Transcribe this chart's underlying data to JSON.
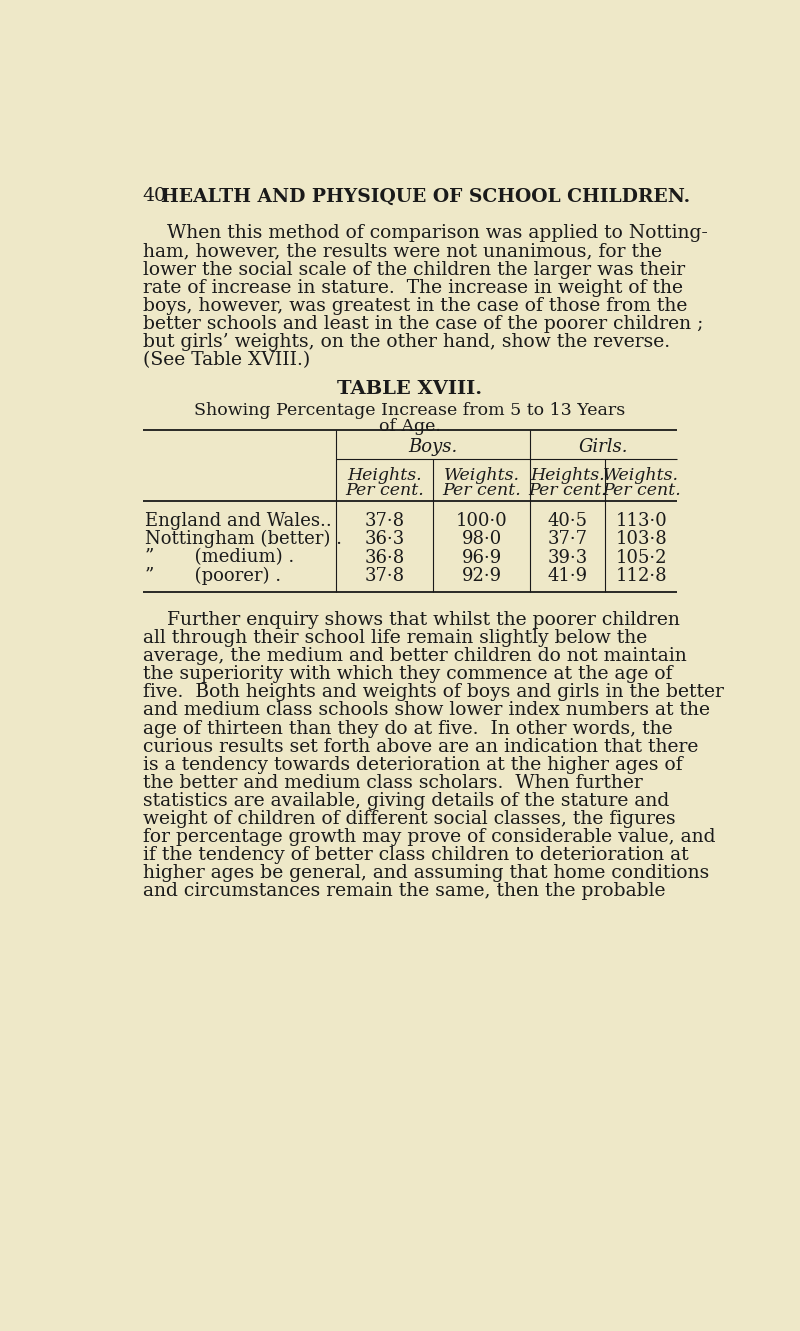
{
  "bg_color": "#eee8c8",
  "text_color": "#1a1a1a",
  "page_number": "40",
  "header": "HEALTH AND PHYSIQUE OF SCHOOL CHILDREN.",
  "para1_lines": [
    "    When this method of comparison was applied to Notting-",
    "ham, however, the results were not unanimous, for the",
    "lower the social scale of the children the larger was their",
    "rate of increase in stature.  The increase in weight of the",
    "boys, however, was greatest in the case of those from the",
    "better schools and least in the case of the poorer children ;",
    "but girls’ weights, on the other hand, show the reverse.",
    "(See Table XVIII.)"
  ],
  "table_title": "TABLE XVIII.",
  "table_subtitle1": "Showing Percentage Increase from 5 to 13 Years",
  "table_subtitle2": "of Age.",
  "col_headers_top": [
    "Boys.",
    "Girls."
  ],
  "col_headers_sub": [
    "Heights.\nPer cent.",
    "Weights.\nPer cent.",
    "Heights.\nPer cent.",
    "Weights.\nPer cent."
  ],
  "row_labels": [
    "England and Wales..",
    "Nottingham (better) .",
    "”       (medium) .",
    "”       (poorer) ."
  ],
  "data": [
    [
      "37·8",
      "100·0",
      "40·5",
      "113·0"
    ],
    [
      "36·3",
      "98·0",
      "37·7",
      "103·8"
    ],
    [
      "36·8",
      "96·9",
      "39·3",
      "105·2"
    ],
    [
      "37·8",
      "92·9",
      "41·9",
      "112·8"
    ]
  ],
  "para2_lines": [
    "    Further enquiry shows that whilst the poorer children",
    "all through their school life remain slightly below the",
    "average, the medium and better children do not maintain",
    "the superiority with which they commence at the age of",
    "five.  Both heights and weights of boys and girls in the better",
    "and medium class schools show lower index numbers at the",
    "age of thirteen than they do at five.  In other words, the",
    "curious results set forth above are an indication that there",
    "is a tendency towards deterioration at the higher ages of",
    "the better and medium class scholars.  When further",
    "statistics are available, giving details of the stature and",
    "weight of children of different social classes, the figures",
    "for percentage growth may prove of considerable value, and",
    "if the tendency of better class children to deterioration at",
    "higher ages be general, and assuming that home conditions",
    "and circumstances remain the same, then the probable"
  ]
}
